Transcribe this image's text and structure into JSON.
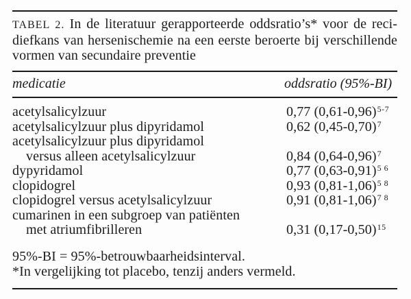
{
  "colors": {
    "background": "#fdfdfd",
    "text": "#1c1c1c",
    "rule": "#1a1a1a"
  },
  "title": {
    "prefix": "TABEL 2.",
    "line1_rest": "In de literatuur gerapporteerde oddsratio’s* voor de reci-",
    "line2": "diefkans van hersenischemie na een eerste beroerte bij verschillende",
    "line3": "vormen van secundaire preventie"
  },
  "header": {
    "col1": "medicatie",
    "col2": "oddsratio (95%-BI)"
  },
  "rows": [
    {
      "label": "acetylsalicylzuur",
      "value": "0,77 (0,61-0,96)",
      "sup": "5-7"
    },
    {
      "label": "acetylsalicylzuur plus dipyridamol",
      "value": "0,62 (0,45-0,70)",
      "sup": "7"
    },
    {
      "label": "acetylsalicylzuur plus dipyridamol",
      "value": "",
      "sup": ""
    },
    {
      "label": "versus alleen acetylsalicylzuur",
      "value": "0,84 (0,64-0,96)",
      "sup": "7"
    },
    {
      "label": "dypyridamol",
      "value": "0,77 (0,63-0,91)",
      "sup": "5 6"
    },
    {
      "label": "clopidogrel",
      "value": "0,93 (0,81-1,06)",
      "sup": "5 8"
    },
    {
      "label": "clopidogrel versus acetylsalicylzuur",
      "value": "0,91 (0,81-1,06)",
      "sup": "7 8"
    },
    {
      "label": "cumarinen in een subgroep van patiënten",
      "value": "",
      "sup": ""
    },
    {
      "label": "met atriumfibrilleren",
      "value": "0,31 (0,17-0,50)",
      "sup": "15"
    }
  ],
  "footnotes": [
    "95%-BI = 95%-betrouwbaarheidsinterval.",
    "*In vergelijking tot placebo, tenzij anders vermeld."
  ]
}
